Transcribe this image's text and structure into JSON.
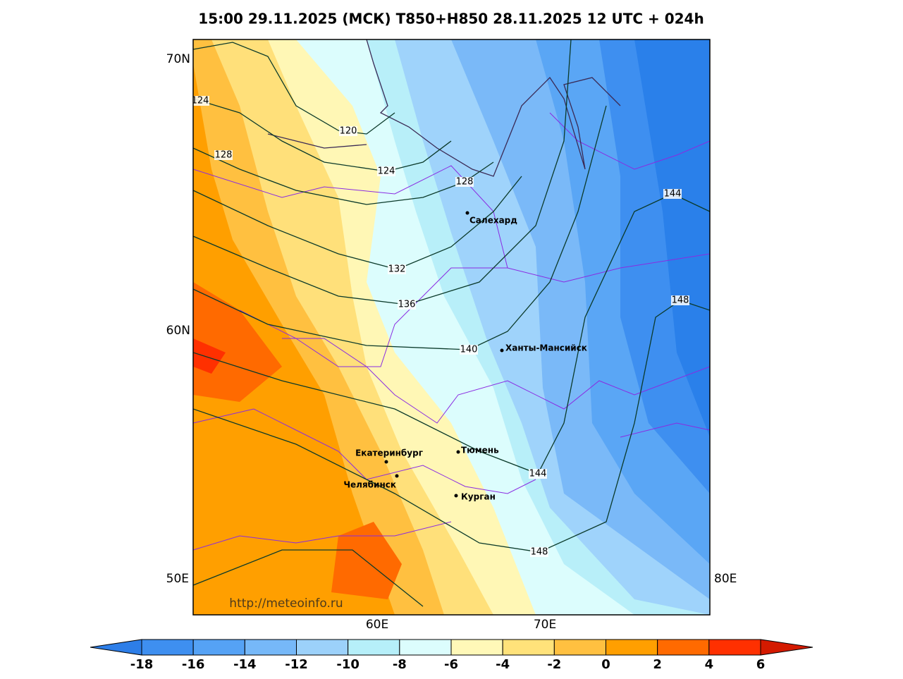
{
  "header": {
    "title": "15:00 29.11.2025 (МСК) T850+H850 28.11.2025 12 UTC + 024h"
  },
  "map": {
    "lat_labels": [
      "70N",
      "60N",
      "50E"
    ],
    "lon_labels": [
      "60E",
      "70E",
      "80E"
    ],
    "contour_labels": [
      "124",
      "128",
      "120",
      "124",
      "128",
      "132",
      "136",
      "140",
      "144",
      "148",
      "144",
      "148"
    ],
    "cities": [
      "Салехард",
      "Ханты-Мансийск",
      "Тюмень",
      "Екатеринбург",
      "Челябинск",
      "Курган"
    ],
    "watermark": "http://meteoinfo.ru"
  },
  "colorbar": {
    "ticks": [
      -18,
      -16,
      -14,
      -12,
      -10,
      -8,
      -6,
      -4,
      -2,
      0,
      2,
      4,
      6
    ],
    "colors": [
      "#2d7ee8",
      "#3e8ff0",
      "#55a2f5",
      "#76b8f8",
      "#9cd1fa",
      "#b6eff9",
      "#dcfdfd",
      "#fff8b8",
      "#ffe27a",
      "#ffc040",
      "#ff9f00",
      "#ff6a00",
      "#ff3000",
      "#d41a00"
    ]
  }
}
